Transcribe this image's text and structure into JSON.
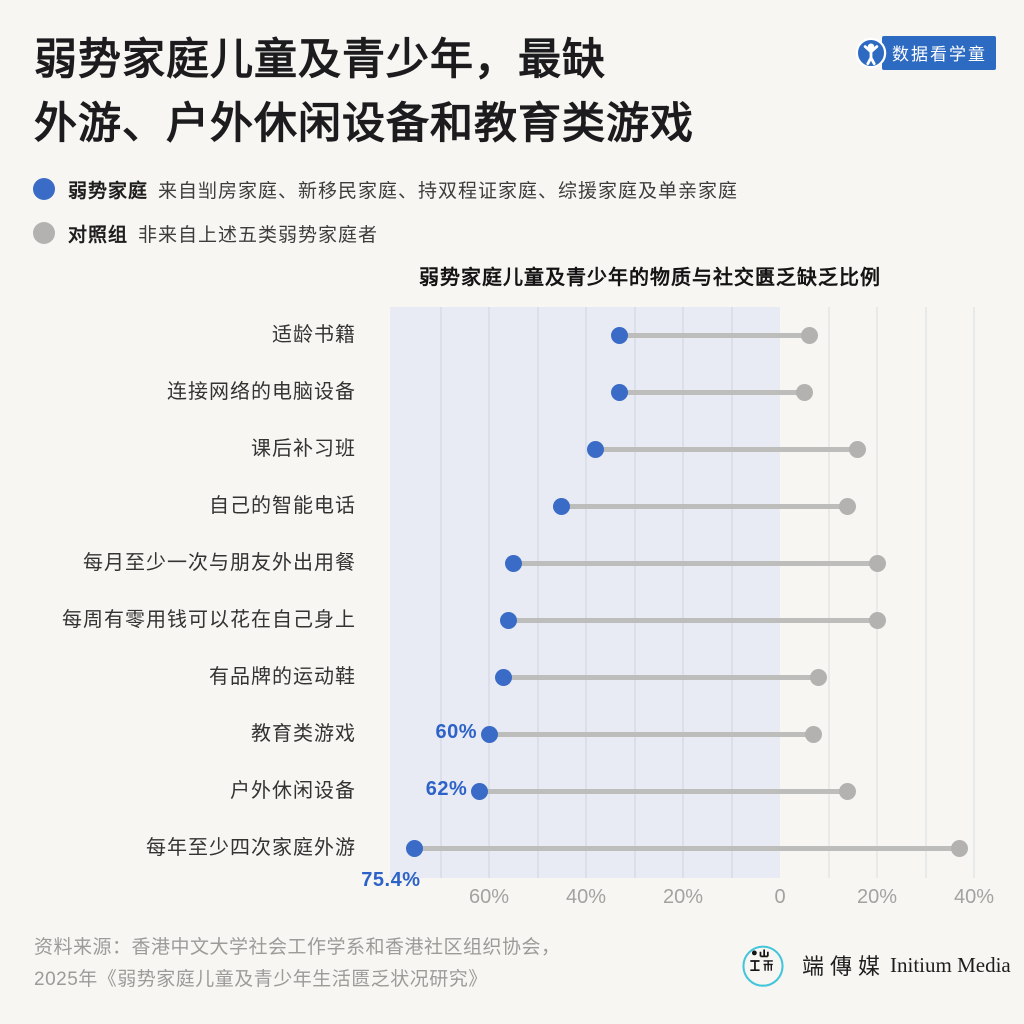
{
  "header": {
    "title_line1": "弱势家庭儿童及青少年，最缺",
    "title_line2": "外游、户外休闲设备和教育类游戏"
  },
  "badge": {
    "label": "数据看学童",
    "color": "#2d6ac2",
    "icon": "child-figure-icon"
  },
  "legend": [
    {
      "term": "弱势家庭",
      "desc": "来自㓥房家庭、新移民家庭、持双程证家庭、综援家庭及单亲家庭",
      "swatch_color": "#3a6bc6"
    },
    {
      "term": "对照组",
      "desc": "非来自上述五类弱势家庭者",
      "swatch_color": "#b3b2b1"
    }
  ],
  "chart_data": {
    "type": "dumbbell",
    "title": "弱势家庭儿童及青少年的物质与社交匮乏缺乏比例",
    "orientation": "horizontal-diverging",
    "categories": [
      "适龄书籍",
      "连接网络的电脑设备",
      "课后补习班",
      "自己的智能电话",
      "每月至少一次与朋友外出用餐",
      "每周有零用钱可以花在自己身上",
      "有品牌的运动鞋",
      "教育类游戏",
      "户外休闲设备",
      "每年至少四次家庭外游"
    ],
    "series": [
      {
        "name": "弱势家庭",
        "side": "left",
        "color": "#3a6bc6",
        "values": [
          33,
          33,
          38,
          45,
          55,
          56,
          57,
          60,
          62,
          75.4
        ]
      },
      {
        "name": "对照组",
        "side": "right",
        "color": "#b3b2b1",
        "values": [
          6,
          5,
          16,
          14,
          20,
          20,
          8,
          7,
          14,
          37
        ]
      }
    ],
    "annotations": [
      {
        "row": 7,
        "text": "60%",
        "placement": "left"
      },
      {
        "row": 8,
        "text": "62%",
        "placement": "left"
      },
      {
        "row": 9,
        "text": "75.4%",
        "placement": "below"
      }
    ],
    "axis": {
      "ticks": [
        -60,
        -40,
        -20,
        0,
        20,
        40
      ],
      "tick_labels": [
        "60%",
        "40%",
        "20%",
        "0",
        "20%",
        "40%"
      ],
      "gridline_step_pct": 10,
      "gridline_range": [
        -70,
        40
      ],
      "shaded_side": "left",
      "shade_color": "#e8ebf4",
      "xlim_left_pct": 80,
      "xlim_right_pct": 47
    }
  },
  "footer": {
    "source_line1": "资料来源：香港中文大学社会工作学系和香港社区组织协会，",
    "source_line2": "2025年《弱势家庭儿童及青少年生活匮乏状况研究》"
  },
  "logo": {
    "icon": "initium-circle-icon",
    "name_zh": "端傳媒",
    "name_en": "Initium Media"
  }
}
